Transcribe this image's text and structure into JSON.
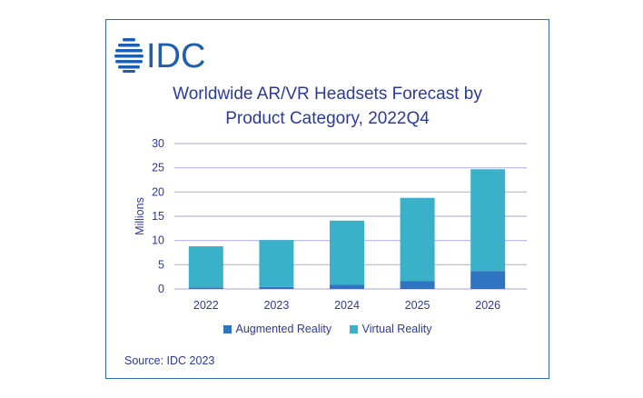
{
  "logo": {
    "text": "IDC",
    "icon": "idc-globe-logo-icon"
  },
  "title_lines": [
    "Worldwide AR/VR Headsets Forecast by",
    "Product Category, 2022Q4"
  ],
  "source": "Source: IDC 2023",
  "colors": {
    "ar": "#2e74c0",
    "vr": "#3bb0c9",
    "grid": "#b8b6e6",
    "text": "#2b3a9b",
    "brand": "#1c5fb0"
  },
  "chart_data": {
    "type": "bar",
    "stacked": true,
    "title": "Worldwide AR/VR Headsets Forecast by Product Category, 2022Q4",
    "categories": [
      "2022",
      "2023",
      "2024",
      "2025",
      "2026"
    ],
    "series": [
      {
        "name": "Augmented Reality",
        "values": [
          0.3,
          0.4,
          0.9,
          1.6,
          3.7
        ]
      },
      {
        "name": "Virtual Reality",
        "values": [
          8.5,
          9.7,
          13.2,
          17.2,
          21.0
        ]
      }
    ],
    "ylabel": "Millions",
    "xlabel": "",
    "ylim": [
      0,
      30
    ],
    "yticks": [
      0,
      5,
      10,
      15,
      20,
      25,
      30
    ],
    "grid": true,
    "legend": "bottom"
  }
}
